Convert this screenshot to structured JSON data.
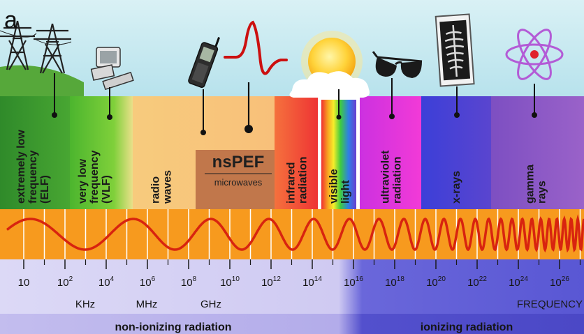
{
  "panel_letter": "a",
  "bands": [
    {
      "id": "elf",
      "lines": [
        "extremely low",
        "frequency",
        "(ELF)"
      ],
      "color": "#3f9a2b"
    },
    {
      "id": "vlf",
      "lines": [
        "very low",
        "frequency",
        "(VLF)"
      ],
      "color": "#57c22e"
    },
    {
      "id": "radio",
      "lines": [
        "radio",
        "waves"
      ],
      "color": "#f6c079"
    },
    {
      "id": "microwave",
      "lines": [],
      "color": "#f6c079"
    },
    {
      "id": "infrared",
      "lines": [
        "infrared",
        "radiation"
      ],
      "color": "#f04b3b"
    },
    {
      "id": "visible",
      "lines": [
        "visible",
        "light"
      ],
      "color": "#ffffff"
    },
    {
      "id": "uv",
      "lines": [
        "ultraviolet",
        "radiation"
      ],
      "color": "#f23ad7"
    },
    {
      "id": "xray",
      "lines": [
        "x-rays"
      ],
      "color": "#3b4fd6"
    },
    {
      "id": "gamma",
      "lines": [
        "gamma",
        "rays"
      ],
      "color": "#7a4fbf"
    }
  ],
  "nspef": {
    "label": "nsPEF",
    "sub": "microwaves",
    "color": "#b86a42"
  },
  "frequency_ticks": [
    {
      "base": "10",
      "exp": ""
    },
    {
      "base": "10",
      "exp": "2"
    },
    {
      "base": "10",
      "exp": "4"
    },
    {
      "base": "10",
      "exp": "6"
    },
    {
      "base": "10",
      "exp": "8"
    },
    {
      "base": "10",
      "exp": "10"
    },
    {
      "base": "10",
      "exp": "12"
    },
    {
      "base": "10",
      "exp": "14"
    },
    {
      "base": "10",
      "exp": "16"
    },
    {
      "base": "10",
      "exp": "18"
    },
    {
      "base": "10",
      "exp": "20"
    },
    {
      "base": "10",
      "exp": "22"
    },
    {
      "base": "10",
      "exp": "24"
    },
    {
      "base": "10",
      "exp": "26"
    }
  ],
  "units": [
    "KHz",
    "MHz",
    "GHz"
  ],
  "frequency_label": "FREQUENCY",
  "regions": {
    "non_ionizing": "non-ionizing radiation",
    "ionizing": "ionizing radiation"
  },
  "icons": [
    "power-tower-icon",
    "computer-icon",
    "mobile-phone-icon",
    "nspef-pulse-icon",
    "sun-icon",
    "sunglasses-icon",
    "x-ray-film-icon",
    "atom-icon"
  ],
  "colors": {
    "sky": "#bfe6ef",
    "wave_strip": "#f79a1e",
    "wave": "#d8240f",
    "scale_light": "#d7d3f5",
    "scale_dark": "#5d5bd6",
    "region_light": "#b9b1ea",
    "region_dark": "#4f4cc9"
  }
}
